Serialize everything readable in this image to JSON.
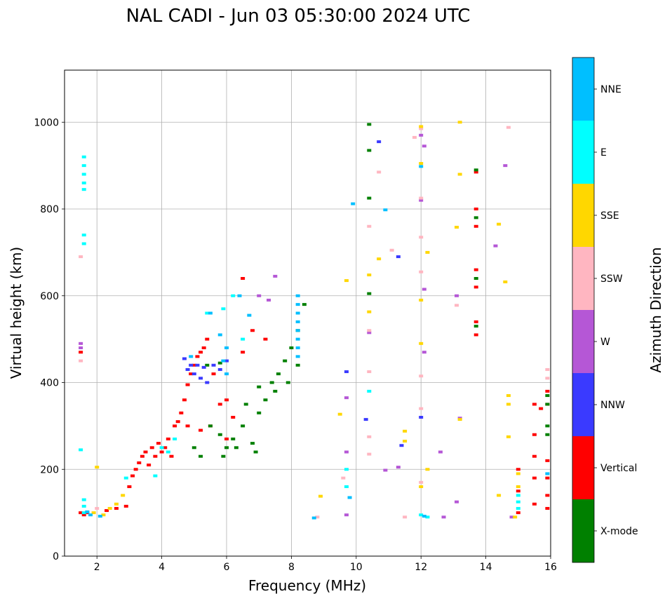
{
  "chart_data": {
    "type": "scatter",
    "title": "NAL CADI - Jun 03 05:30:00 2024 UTC",
    "xlabel": "Frequency (MHz)",
    "ylabel": "Virtual height (km)",
    "xlim": [
      1.0,
      16.0
    ],
    "ylim": [
      0,
      1120
    ],
    "xticks": [
      2,
      4,
      6,
      8,
      10,
      12,
      14,
      16
    ],
    "yticks": [
      0,
      200,
      400,
      600,
      800,
      1000
    ],
    "grid": true,
    "colorbar": {
      "label": "Azimuth Direction",
      "categories": [
        {
          "name": "X-mode",
          "color": "#008000"
        },
        {
          "name": "Vertical",
          "color": "#ff0000"
        },
        {
          "name": "NNW",
          "color": "#3a3aff"
        },
        {
          "name": "W",
          "color": "#b557d6"
        },
        {
          "name": "SSW",
          "color": "#ffb6c1"
        },
        {
          "name": "SSE",
          "color": "#ffd700"
        },
        {
          "name": "E",
          "color": "#00ffff"
        },
        {
          "name": "NNE",
          "color": "#00bfff"
        }
      ]
    },
    "series": [
      {
        "name": "Vertical",
        "points": [
          [
            1.5,
            100
          ],
          [
            1.6,
            95
          ],
          [
            1.7,
            100
          ],
          [
            2.3,
            105
          ],
          [
            2.6,
            110
          ],
          [
            2.9,
            115
          ],
          [
            3.0,
            160
          ],
          [
            3.1,
            185
          ],
          [
            3.2,
            200
          ],
          [
            3.3,
            215
          ],
          [
            3.4,
            230
          ],
          [
            3.5,
            240
          ],
          [
            3.6,
            210
          ],
          [
            3.7,
            250
          ],
          [
            3.8,
            230
          ],
          [
            3.9,
            260
          ],
          [
            4.0,
            240
          ],
          [
            4.1,
            250
          ],
          [
            4.2,
            270
          ],
          [
            4.3,
            230
          ],
          [
            4.4,
            300
          ],
          [
            4.5,
            310
          ],
          [
            4.6,
            330
          ],
          [
            4.7,
            360
          ],
          [
            4.8,
            395
          ],
          [
            4.9,
            420
          ],
          [
            5.0,
            440
          ],
          [
            5.1,
            460
          ],
          [
            5.2,
            470
          ],
          [
            5.3,
            480
          ],
          [
            5.4,
            500
          ],
          [
            5.6,
            420
          ],
          [
            5.8,
            350
          ],
          [
            6.0,
            360
          ],
          [
            6.2,
            320
          ],
          [
            6.5,
            470
          ],
          [
            6.8,
            520
          ],
          [
            7.2,
            500
          ],
          [
            1.5,
            470
          ],
          [
            4.8,
            300
          ],
          [
            5.2,
            290
          ],
          [
            5.5,
            300
          ],
          [
            6.0,
            270
          ],
          [
            15.0,
            200
          ],
          [
            15.0,
            150
          ],
          [
            15.0,
            100
          ],
          [
            15.5,
            350
          ],
          [
            15.5,
            280
          ],
          [
            15.5,
            230
          ],
          [
            15.5,
            180
          ],
          [
            15.5,
            120
          ],
          [
            15.7,
            340
          ],
          [
            15.9,
            380
          ],
          [
            15.9,
            350
          ],
          [
            15.9,
            220
          ],
          [
            15.9,
            180
          ],
          [
            15.9,
            140
          ],
          [
            15.9,
            110
          ],
          [
            13.7,
            885
          ],
          [
            13.7,
            800
          ],
          [
            13.7,
            760
          ],
          [
            13.7,
            660
          ],
          [
            13.7,
            620
          ],
          [
            13.7,
            540
          ],
          [
            13.7,
            510
          ],
          [
            6.5,
            640
          ]
        ]
      },
      {
        "name": "X-mode",
        "points": [
          [
            5.5,
            300
          ],
          [
            5.8,
            280
          ],
          [
            6.0,
            250
          ],
          [
            6.2,
            270
          ],
          [
            6.5,
            300
          ],
          [
            6.8,
            260
          ],
          [
            7.0,
            330
          ],
          [
            7.2,
            360
          ],
          [
            7.4,
            400
          ],
          [
            7.6,
            420
          ],
          [
            7.8,
            450
          ],
          [
            8.0,
            480
          ],
          [
            8.2,
            520
          ],
          [
            8.4,
            580
          ],
          [
            8.2,
            440
          ],
          [
            7.9,
            400
          ],
          [
            7.5,
            380
          ],
          [
            7.0,
            390
          ],
          [
            6.6,
            350
          ],
          [
            6.3,
            250
          ],
          [
            5.9,
            230
          ],
          [
            6.9,
            240
          ],
          [
            5.2,
            230
          ],
          [
            5.0,
            250
          ],
          [
            15.9,
            300
          ],
          [
            15.9,
            280
          ],
          [
            15.9,
            370
          ],
          [
            15.9,
            350
          ],
          [
            13.7,
            890
          ],
          [
            13.7,
            780
          ],
          [
            13.7,
            640
          ],
          [
            13.7,
            530
          ],
          [
            10.4,
            995
          ],
          [
            10.4,
            935
          ],
          [
            10.4,
            825
          ],
          [
            10.4,
            605
          ],
          [
            5.4,
            440
          ],
          [
            5.8,
            445
          ]
        ]
      },
      {
        "name": "NNW",
        "points": [
          [
            4.8,
            430
          ],
          [
            5.0,
            420
          ],
          [
            5.2,
            410
          ],
          [
            5.4,
            400
          ],
          [
            5.6,
            440
          ],
          [
            5.8,
            430
          ],
          [
            6.0,
            450
          ],
          [
            4.7,
            455
          ],
          [
            5.1,
            440
          ],
          [
            10.7,
            955
          ],
          [
            10.3,
            315
          ],
          [
            11.3,
            690
          ],
          [
            11.4,
            255
          ],
          [
            12.0,
            320
          ],
          [
            4.9,
            440
          ],
          [
            5.3,
            435
          ],
          [
            9.7,
            425
          ]
        ]
      },
      {
        "name": "W",
        "points": [
          [
            1.5,
            490
          ],
          [
            1.5,
            480
          ],
          [
            7.5,
            645
          ],
          [
            7.0,
            600
          ],
          [
            7.3,
            590
          ],
          [
            9.7,
            365
          ],
          [
            9.7,
            240
          ],
          [
            9.7,
            95
          ],
          [
            12.0,
            970
          ],
          [
            12.1,
            945
          ],
          [
            12.1,
            615
          ],
          [
            12.1,
            470
          ],
          [
            11.3,
            205
          ],
          [
            12.6,
            240
          ],
          [
            12.7,
            90
          ],
          [
            13.1,
            600
          ],
          [
            13.1,
            125
          ],
          [
            13.2,
            318
          ],
          [
            14.3,
            715
          ],
          [
            14.6,
            900
          ],
          [
            14.8,
            90
          ],
          [
            10.9,
            198
          ],
          [
            12.0,
            820
          ],
          [
            10.4,
            515
          ]
        ]
      },
      {
        "name": "SSW",
        "points": [
          [
            1.5,
            690
          ],
          [
            2.0,
            110
          ],
          [
            12.0,
            985
          ],
          [
            12.0,
            825
          ],
          [
            12.0,
            735
          ],
          [
            12.0,
            655
          ],
          [
            12.0,
            415
          ],
          [
            12.0,
            340
          ],
          [
            12.0,
            170
          ],
          [
            14.7,
            988
          ],
          [
            13.1,
            578
          ],
          [
            11.1,
            705
          ],
          [
            10.7,
            885
          ],
          [
            10.4,
            760
          ],
          [
            10.4,
            520
          ],
          [
            10.4,
            425
          ],
          [
            10.4,
            275
          ],
          [
            10.4,
            235
          ],
          [
            11.5,
            90
          ],
          [
            15.9,
            430
          ],
          [
            15.9,
            410
          ],
          [
            8.8,
            90
          ],
          [
            9.6,
            180
          ],
          [
            1.5,
            450
          ],
          [
            11.8,
            965
          ]
        ]
      },
      {
        "name": "SSE",
        "points": [
          [
            2.0,
            205
          ],
          [
            2.4,
            110
          ],
          [
            2.6,
            120
          ],
          [
            2.8,
            140
          ],
          [
            1.9,
            100
          ],
          [
            2.2,
            95
          ],
          [
            12.0,
            990
          ],
          [
            12.0,
            905
          ],
          [
            12.0,
            590
          ],
          [
            12.0,
            490
          ],
          [
            12.0,
            160
          ],
          [
            12.2,
            700
          ],
          [
            12.2,
            200
          ],
          [
            13.2,
            1000
          ],
          [
            13.2,
            880
          ],
          [
            13.1,
            758
          ],
          [
            13.2,
            315
          ],
          [
            14.7,
            370
          ],
          [
            14.7,
            350
          ],
          [
            14.7,
            275
          ],
          [
            14.9,
            90
          ],
          [
            14.4,
            765
          ],
          [
            14.6,
            632
          ],
          [
            14.4,
            140
          ],
          [
            10.4,
            648
          ],
          [
            10.4,
            563
          ],
          [
            10.7,
            685
          ],
          [
            8.9,
            138
          ],
          [
            9.5,
            327
          ],
          [
            9.7,
            635
          ],
          [
            11.5,
            288
          ],
          [
            11.5,
            265
          ],
          [
            15.0,
            190
          ],
          [
            15.0,
            160
          ]
        ]
      },
      {
        "name": "E",
        "points": [
          [
            1.6,
            920
          ],
          [
            1.6,
            900
          ],
          [
            1.6,
            880
          ],
          [
            1.6,
            860
          ],
          [
            1.6,
            845
          ],
          [
            1.6,
            740
          ],
          [
            1.6,
            720
          ],
          [
            1.6,
            130
          ],
          [
            1.6,
            115
          ],
          [
            1.6,
            100
          ],
          [
            1.5,
            245
          ],
          [
            2.9,
            180
          ],
          [
            4.0,
            250
          ],
          [
            4.2,
            240
          ],
          [
            5.4,
            560
          ],
          [
            5.9,
            570
          ],
          [
            6.2,
            600
          ],
          [
            6.5,
            500
          ],
          [
            15.0,
            140
          ],
          [
            15.0,
            125
          ],
          [
            15.0,
            110
          ],
          [
            9.7,
            200
          ],
          [
            9.7,
            160
          ],
          [
            12.2,
            90
          ],
          [
            12.0,
            95
          ],
          [
            10.4,
            380
          ],
          [
            3.8,
            185
          ],
          [
            4.4,
            270
          ]
        ]
      },
      {
        "name": "NNE",
        "points": [
          [
            8.2,
            600
          ],
          [
            8.2,
            580
          ],
          [
            8.2,
            560
          ],
          [
            8.2,
            540
          ],
          [
            8.2,
            520
          ],
          [
            8.2,
            500
          ],
          [
            8.2,
            480
          ],
          [
            8.2,
            460
          ],
          [
            6.0,
            480
          ],
          [
            5.8,
            510
          ],
          [
            5.9,
            450
          ],
          [
            6.0,
            420
          ],
          [
            5.5,
            560
          ],
          [
            6.4,
            600
          ],
          [
            6.7,
            555
          ],
          [
            4.9,
            460
          ],
          [
            9.8,
            135
          ],
          [
            9.9,
            812
          ],
          [
            10.9,
            798
          ],
          [
            12.0,
            898
          ],
          [
            12.1,
            92
          ],
          [
            8.7,
            88
          ],
          [
            2.1,
            92
          ],
          [
            1.7,
            102
          ],
          [
            1.8,
            95
          ],
          [
            15.9,
            190
          ]
        ]
      }
    ]
  }
}
